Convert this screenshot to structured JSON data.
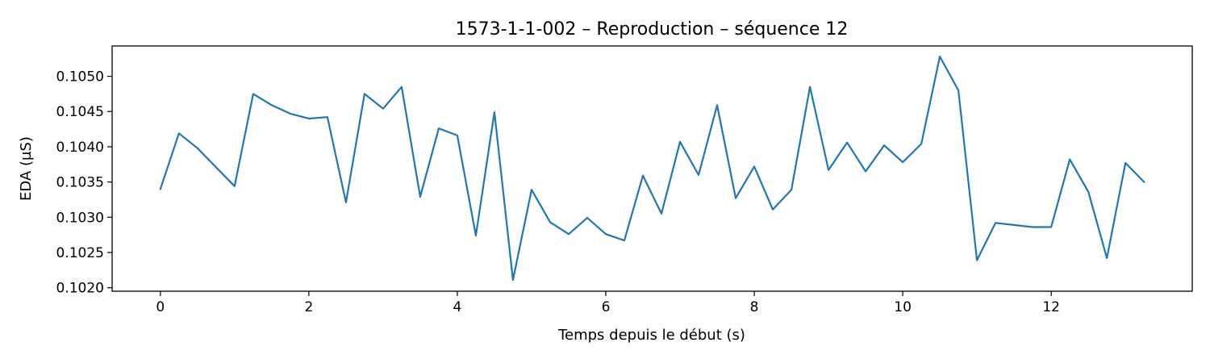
{
  "chart_data": {
    "type": "line",
    "title": "1573-1-1-002 – Reproduction – séquence 12",
    "xlabel": "Temps depuis le début (s)",
    "ylabel": "EDA (µS)",
    "xlim": [
      -0.65,
      13.9
    ],
    "ylim": [
      0.10195,
      0.10543
    ],
    "xticks": [
      0,
      2,
      4,
      6,
      8,
      10,
      12
    ],
    "xtick_labels": [
      "0",
      "2",
      "4",
      "6",
      "8",
      "10",
      "12"
    ],
    "yticks": [
      0.102,
      0.1025,
      0.103,
      0.1035,
      0.104,
      0.1045,
      0.105
    ],
    "ytick_labels": [
      "0.1020",
      "0.1025",
      "0.1030",
      "0.1035",
      "0.1040",
      "0.1045",
      "0.1050"
    ],
    "grid": false,
    "series": [
      {
        "color": "#1f77b4",
        "x": [
          0,
          0.25,
          0.5,
          0.75,
          1.0,
          1.25,
          1.5,
          1.75,
          2.0,
          2.25,
          2.5,
          2.75,
          3.0,
          3.25,
          3.5,
          3.75,
          4.0,
          4.25,
          4.5,
          4.75,
          5.0,
          5.25,
          5.5,
          5.75,
          6.0,
          6.25,
          6.5,
          6.75,
          7.0,
          7.25,
          7.5,
          7.75,
          8.0,
          8.25,
          8.5,
          8.75,
          9.0,
          9.25,
          9.5,
          9.75,
          10.0,
          10.25,
          10.5,
          10.75,
          11.0,
          11.25,
          11.5,
          11.75,
          12.0,
          12.25,
          12.5,
          12.75,
          13.0,
          13.25
        ],
        "y": [
          0.1034,
          0.10419,
          0.10398,
          0.10371,
          0.10344,
          0.10475,
          0.10459,
          0.10447,
          0.1044,
          0.10442,
          0.10321,
          0.10475,
          0.10454,
          0.10485,
          0.10329,
          0.10426,
          0.10416,
          0.10274,
          0.10449,
          0.10211,
          0.10339,
          0.10293,
          0.10276,
          0.10299,
          0.10276,
          0.10267,
          0.10359,
          0.10305,
          0.10407,
          0.1036,
          0.10459,
          0.10327,
          0.10372,
          0.10311,
          0.10339,
          0.10485,
          0.10367,
          0.10406,
          0.10365,
          0.10402,
          0.10378,
          0.10404,
          0.10528,
          0.1048,
          0.10239,
          0.10292,
          0.10289,
          0.10286,
          0.10286,
          0.10382,
          0.10336,
          0.10242,
          0.10377,
          0.1035
        ]
      }
    ]
  }
}
